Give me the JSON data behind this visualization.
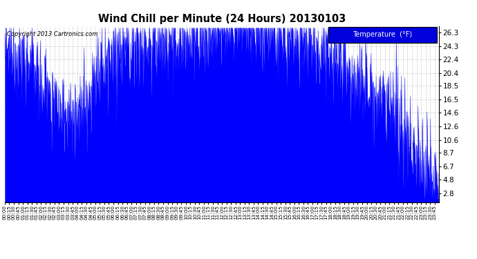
{
  "title": "Wind Chill per Minute (24 Hours) 20130103",
  "copyright_text": "Copyright 2013 Cartronics.com",
  "legend_label": "Temperature  (°F)",
  "legend_bg": "#0000dd",
  "legend_text_color": "#ffffff",
  "line_color": "#0000ff",
  "bg_color": "#ffffff",
  "plot_bg_color": "#ffffff",
  "grid_color": "#bbbbbb",
  "yticks": [
    2.8,
    4.8,
    6.7,
    8.7,
    10.6,
    12.6,
    14.6,
    16.5,
    18.5,
    20.4,
    22.4,
    24.3,
    26.3
  ],
  "ymin": 1.5,
  "ymax": 27.3,
  "num_minutes": 1440,
  "seed": 12345
}
